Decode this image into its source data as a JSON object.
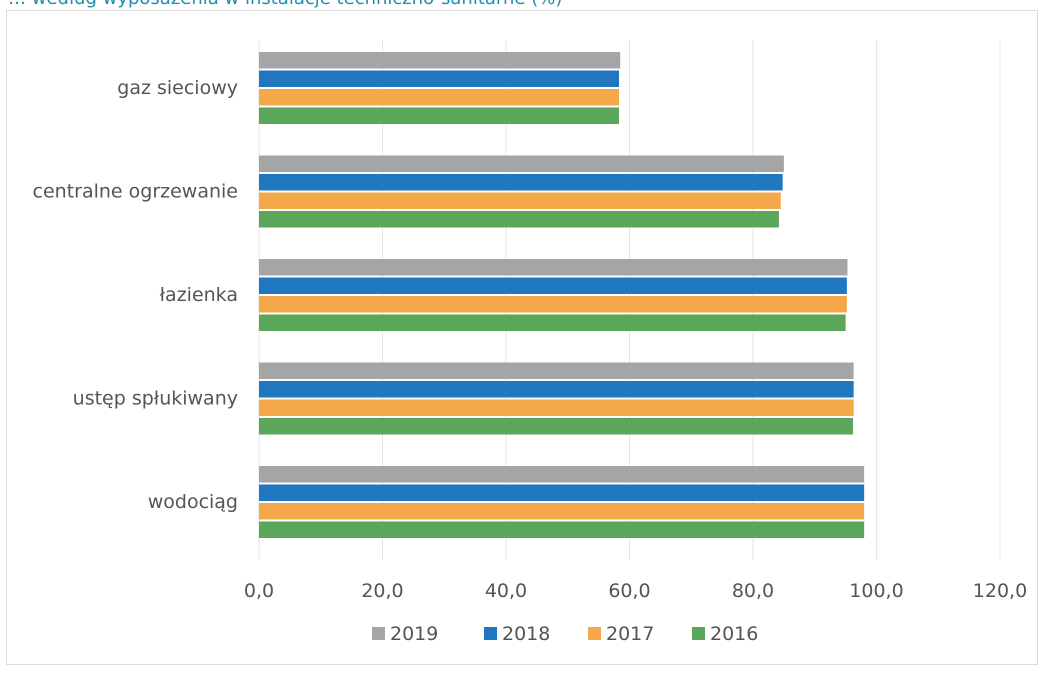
{
  "title": "… według wyposażenia w instalacje techniczno-sanitarne (%)",
  "chart_data": {
    "type": "bar",
    "orientation": "horizontal",
    "title": "… według wyposażenia w instalacje techniczno-sanitarne (%)",
    "xlabel": "",
    "ylabel": "",
    "xlim": [
      0,
      120
    ],
    "x_ticks": [
      "0,0",
      "20,0",
      "40,0",
      "60,0",
      "80,0",
      "100,0",
      "120,0"
    ],
    "tick_values": [
      0,
      20,
      40,
      60,
      80,
      100,
      120
    ],
    "grid": "vertical",
    "legend_position": "bottom",
    "categories": [
      "gaz sieciowy",
      "centralne ogrzewanie",
      "łazienka",
      "ustęp spłukiwany",
      "wodociąg"
    ],
    "series": [
      {
        "name": "2019",
        "color": "#a5a5a5",
        "values": [
          58.5,
          85.0,
          95.3,
          96.3,
          98.0
        ]
      },
      {
        "name": "2018",
        "color": "#1f77c0",
        "values": [
          58.3,
          84.8,
          95.2,
          96.3,
          98.0
        ]
      },
      {
        "name": "2017",
        "color": "#f4a84a",
        "values": [
          58.3,
          84.5,
          95.2,
          96.3,
          98.0
        ]
      },
      {
        "name": "2016",
        "color": "#5aa65a",
        "values": [
          58.3,
          84.2,
          95.0,
          96.2,
          98.0
        ]
      }
    ]
  }
}
